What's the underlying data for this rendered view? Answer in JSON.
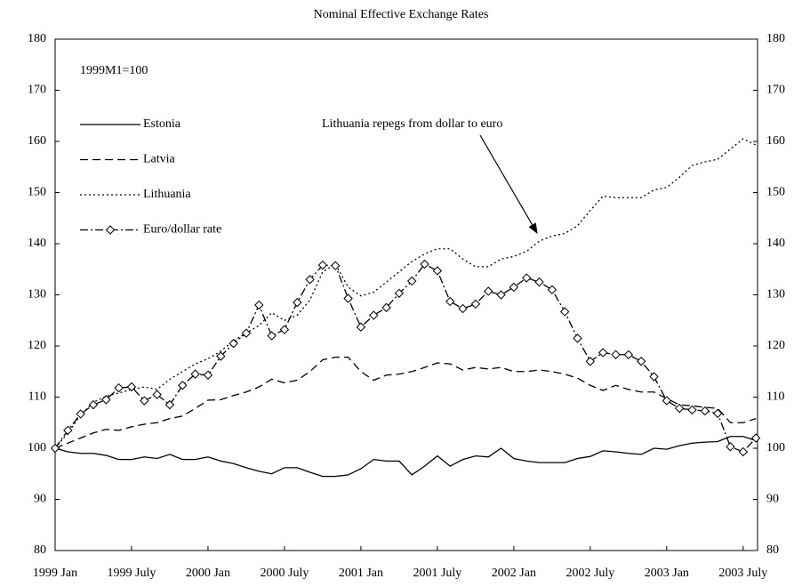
{
  "chart_data": {
    "type": "line",
    "title": "Nominal Effective Exchange Rates",
    "subtitle": "1999M1=100",
    "annotation": "Lithuania repegs from dollar to euro",
    "categories": [
      "1999 Jan",
      null,
      null,
      null,
      null,
      null,
      "1999 July",
      null,
      null,
      null,
      null,
      null,
      "2000 Jan",
      null,
      null,
      null,
      null,
      null,
      "2000 July",
      null,
      null,
      null,
      null,
      null,
      "2001 Jan",
      null,
      null,
      null,
      null,
      null,
      "2001 July",
      null,
      null,
      null,
      null,
      null,
      "2002 Jan",
      null,
      null,
      null,
      null,
      null,
      "2002 July",
      null,
      null,
      null,
      null,
      null,
      "2003 Jan",
      null,
      null,
      null,
      null,
      null,
      "2003 July",
      null
    ],
    "ylim": [
      80,
      180
    ],
    "yticks": [
      80,
      90,
      100,
      110,
      120,
      130,
      140,
      150,
      160,
      170,
      180
    ],
    "y2lim": [
      80,
      180
    ],
    "y2ticks": [
      80,
      90,
      100,
      110,
      120,
      130,
      140,
      150,
      160,
      170,
      180
    ],
    "grid": false,
    "legend": "upper-left",
    "series": [
      {
        "name": "Estonia",
        "color": "#000000",
        "dash": "solid",
        "values": [
          100,
          99.3,
          99,
          99,
          98.6,
          97.8,
          97.8,
          98.3,
          98,
          98.8,
          97.8,
          97.8,
          98.3,
          97.5,
          97,
          96.2,
          95.5,
          95,
          96.2,
          96.2,
          95.3,
          94.5,
          94.5,
          94.8,
          96,
          97.8,
          97.5,
          97.5,
          94.8,
          96.5,
          98.5,
          96.5,
          97.8,
          98.5,
          98.3,
          100,
          98,
          97.5,
          97.2,
          97.2,
          97.2,
          98,
          98.4,
          99.5,
          99.3,
          99,
          98.8,
          100,
          99.8,
          100.5,
          101,
          101.2,
          101.3,
          102.3,
          102.3,
          101.5
        ]
      },
      {
        "name": "Latvia",
        "color": "#000000",
        "dash": "dashed",
        "values": [
          100,
          101,
          102,
          103,
          103.7,
          103.5,
          104.2,
          104.7,
          105,
          105.8,
          106.3,
          107.8,
          109.4,
          109.5,
          110.3,
          111,
          112,
          113.5,
          112.8,
          113.3,
          115,
          117.3,
          117.8,
          117.8,
          115,
          113.3,
          114.3,
          114.5,
          115,
          115.8,
          116.7,
          116.5,
          115.3,
          115.8,
          115.5,
          115.8,
          115,
          115,
          115.3,
          115,
          114.5,
          113.7,
          112.3,
          111.3,
          112.3,
          111.5,
          111,
          111,
          109.7,
          108.5,
          108.3,
          108,
          107.8,
          105,
          105,
          105.8
        ]
      },
      {
        "name": "Lithuania",
        "color": "#000000",
        "dash": "dotted",
        "values": [
          100,
          103,
          106.5,
          109,
          110.2,
          110.8,
          111.5,
          112,
          111.5,
          113.5,
          115,
          116.5,
          117.5,
          119,
          121,
          122.5,
          124,
          126.5,
          125,
          126,
          129,
          134.5,
          136,
          131.5,
          129.8,
          130.5,
          132.5,
          134.5,
          136.5,
          138,
          139,
          139,
          137,
          135.5,
          135.5,
          137,
          137.5,
          138.5,
          140.5,
          141.5,
          142,
          143.5,
          146.5,
          149.3,
          149,
          149,
          149,
          150.5,
          151,
          153,
          155.3,
          156,
          156.5,
          158.5,
          160.5,
          159.3
        ]
      },
      {
        "name": "Euro/dollar rate",
        "color": "#000000",
        "dash": "dashdot",
        "marker": "diamond",
        "values": [
          100,
          103.5,
          106.7,
          108.5,
          109.5,
          111.8,
          112,
          109.3,
          110.5,
          108.5,
          112.3,
          114.5,
          114.3,
          118,
          120.5,
          122.5,
          128,
          122,
          123.2,
          128.5,
          133,
          135.8,
          135.7,
          129.3,
          123.7,
          126,
          127.5,
          130.3,
          132.7,
          136,
          134.7,
          128.7,
          127.3,
          128.2,
          130.7,
          130,
          131.5,
          133.3,
          132.5,
          131,
          126.7,
          121.5,
          117,
          118.7,
          118.3,
          118.3,
          117,
          114,
          109.3,
          107.8,
          107.5,
          107.3,
          106.8,
          100.3,
          99.3,
          102
        ]
      }
    ]
  }
}
